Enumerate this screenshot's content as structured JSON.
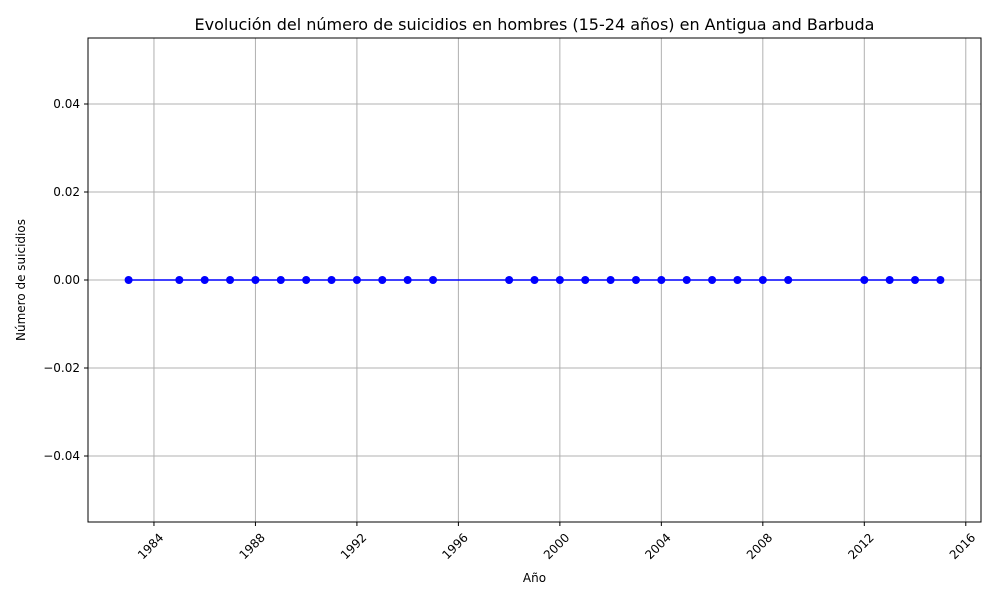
{
  "chart_data": {
    "type": "line",
    "title": "Evolución del número de suicidios en hombres (15-24 años) en Antigua and Barbuda",
    "xlabel": "Año",
    "ylabel": "Número de suicidios",
    "xlim": [
      1981.4,
      2016.6
    ],
    "ylim": [
      -0.055,
      0.055
    ],
    "x_ticks": [
      1984,
      1988,
      1992,
      1996,
      2000,
      2004,
      2008,
      2012,
      2016
    ],
    "x_tick_labels": [
      "1984",
      "1988",
      "1992",
      "1996",
      "2000",
      "2004",
      "2008",
      "2012",
      "2016"
    ],
    "y_ticks": [
      -0.04,
      -0.02,
      0.0,
      0.02,
      0.04
    ],
    "y_tick_labels": [
      "−0.04",
      "−0.02",
      "0.00",
      "0.02",
      "0.04"
    ],
    "x_tick_rotation": "45 degrees",
    "grid": true,
    "colors": {
      "series": "#0000ff",
      "grid": "#b0b0b0"
    },
    "series": [
      {
        "marker": "circle",
        "x": [
          1983,
          1985,
          1986,
          1987,
          1988,
          1989,
          1990,
          1991,
          1992,
          1993,
          1994,
          1995,
          1998,
          1999,
          2000,
          2001,
          2002,
          2003,
          2004,
          2005,
          2006,
          2007,
          2008,
          2009,
          2012,
          2013,
          2014,
          2015
        ],
        "y": [
          0,
          0,
          0,
          0,
          0,
          0,
          0,
          0,
          0,
          0,
          0,
          0,
          0,
          0,
          0,
          0,
          0,
          0,
          0,
          0,
          0,
          0,
          0,
          0,
          0,
          0,
          0,
          0
        ]
      }
    ]
  }
}
